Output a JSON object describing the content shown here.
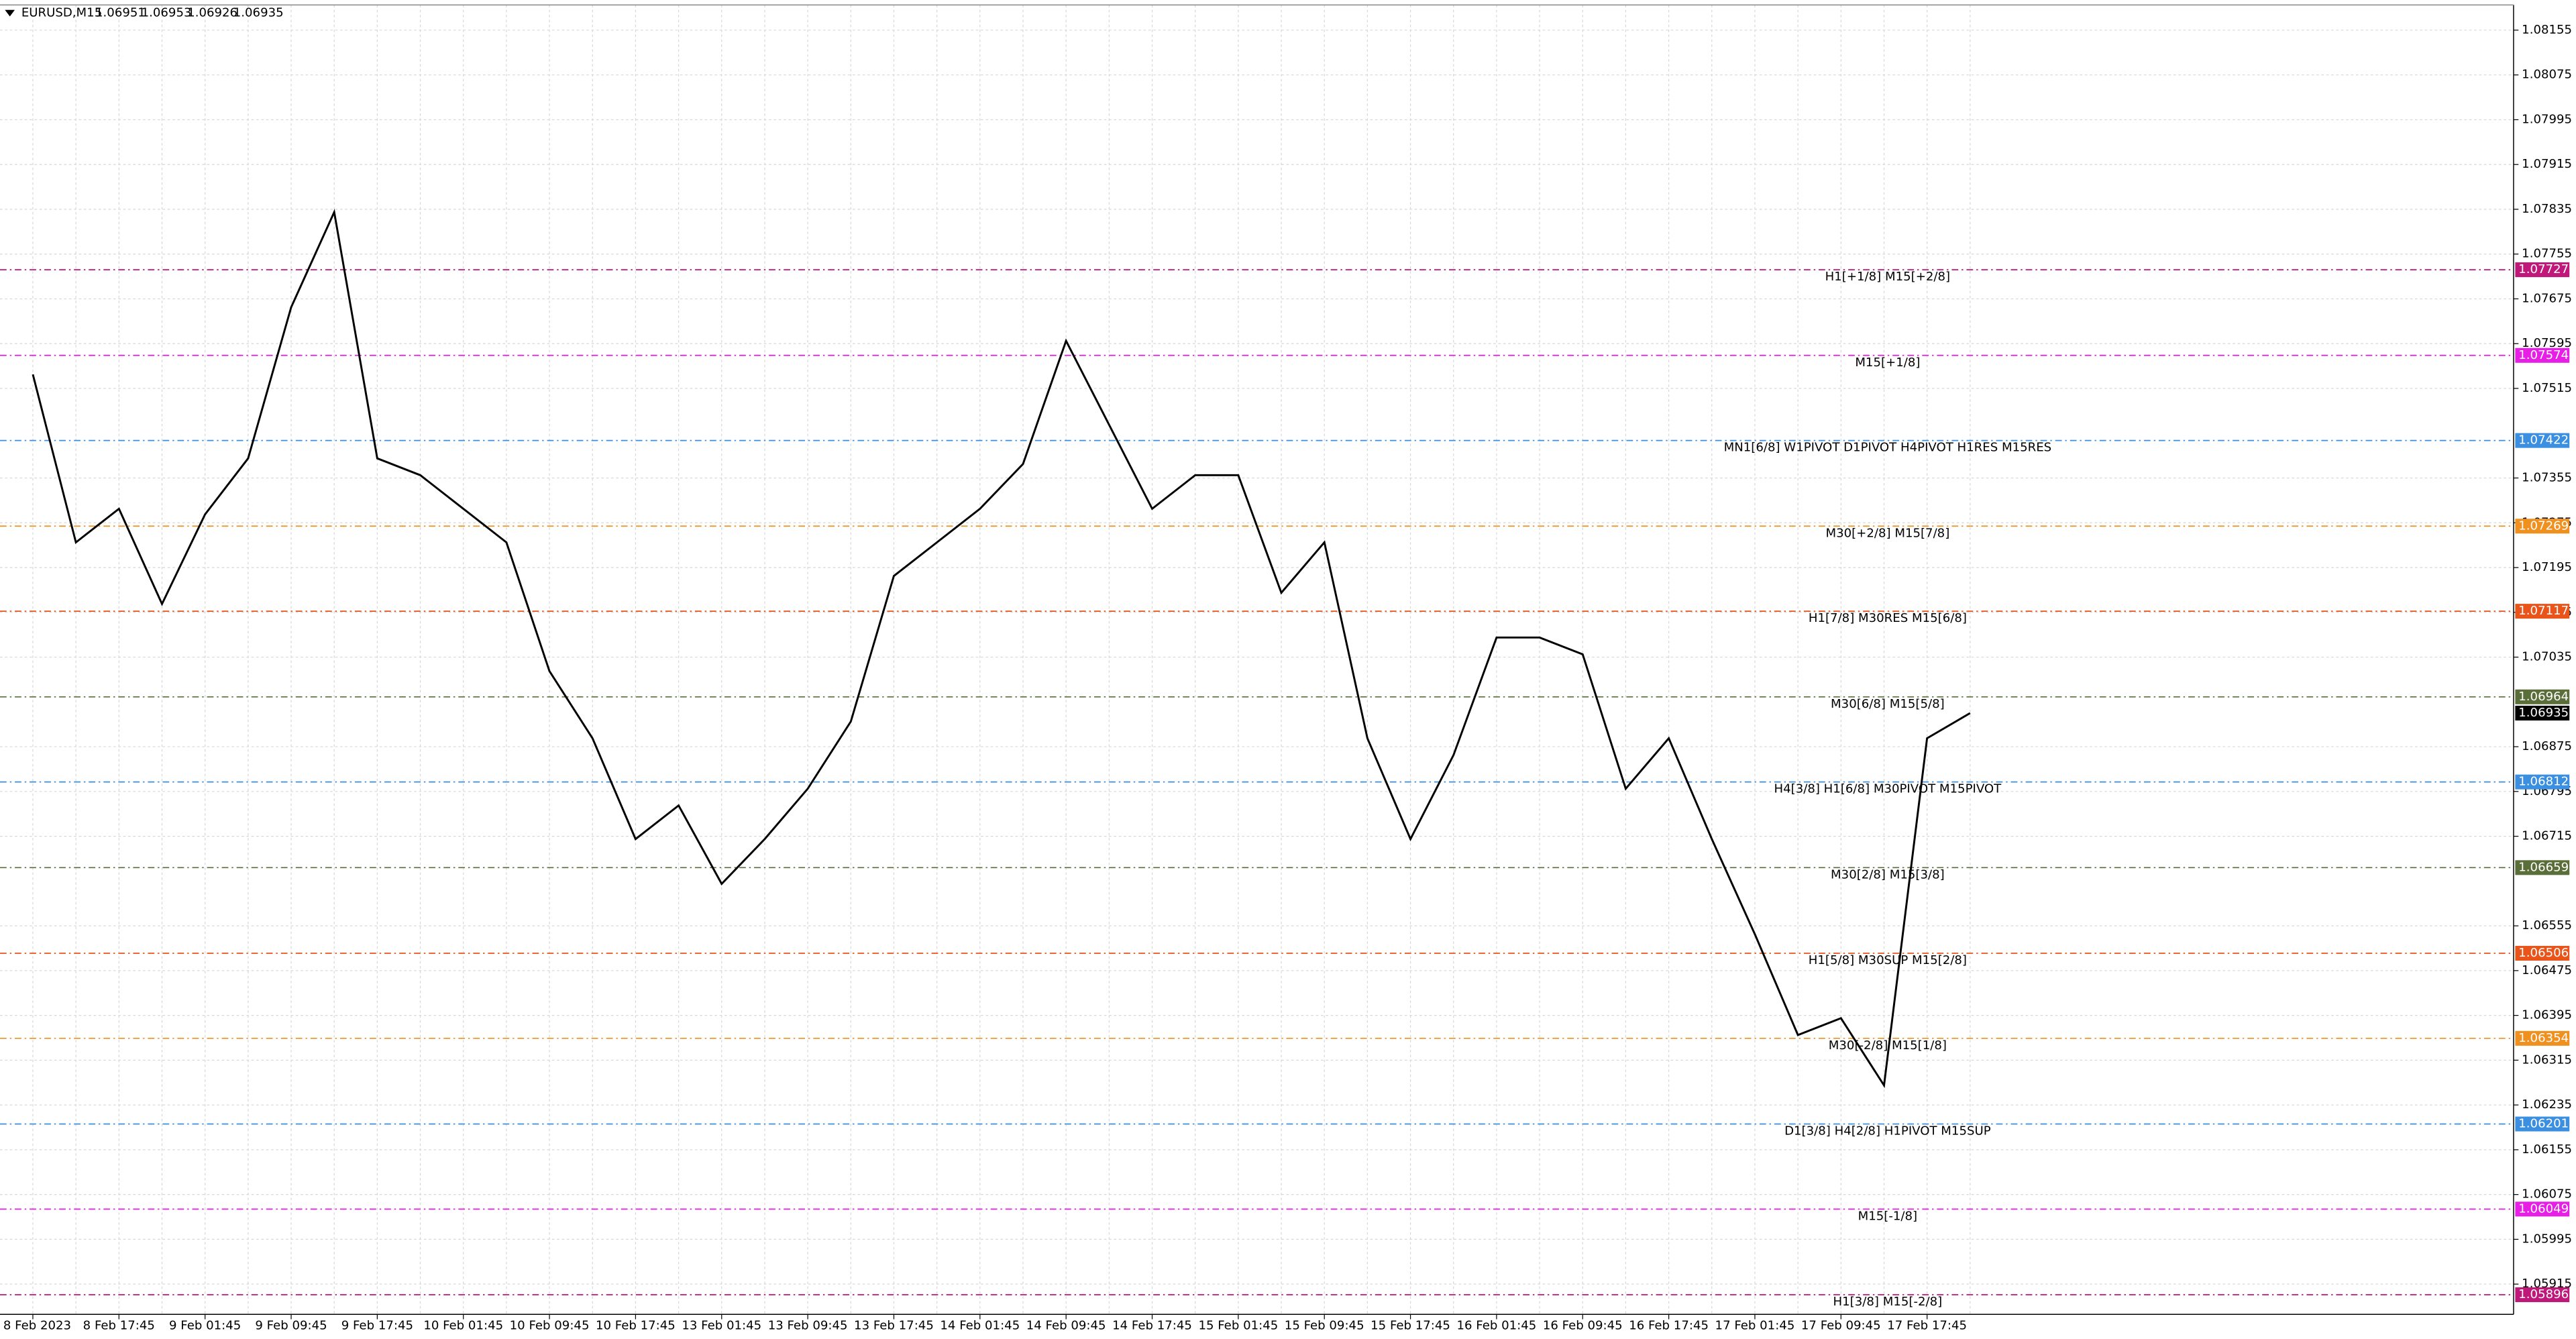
{
  "chart_data": {
    "type": "line",
    "title": "EURUSD,M15",
    "ohlc": [
      1.06951,
      1.06953,
      1.06926,
      1.06935
    ],
    "categories": [
      "8 Feb 2023",
      null,
      "8 Feb 17:45",
      null,
      "9 Feb 01:45",
      null,
      "9 Feb 09:45",
      null,
      "9 Feb 17:45",
      null,
      "10 Feb 01:45",
      null,
      "10 Feb 09:45",
      null,
      "10 Feb 17:45",
      null,
      "13 Feb 01:45",
      null,
      "13 Feb 09:45",
      null,
      "13 Feb 17:45",
      null,
      "14 Feb 01:45",
      null,
      "14 Feb 09:45",
      null,
      "14 Feb 17:45",
      null,
      "15 Feb 01:45",
      null,
      "15 Feb 09:45",
      null,
      "15 Feb 17:45",
      null,
      "16 Feb 01:45",
      null,
      "16 Feb 09:45",
      null,
      "16 Feb 17:45",
      null,
      "17 Feb 01:45",
      null,
      "17 Feb 09:45",
      null,
      "17 Feb 17:45",
      null
    ],
    "values": [
      1.0754,
      1.0724,
      1.073,
      1.0713,
      1.0729,
      1.0739,
      1.0766,
      1.0783,
      1.0739,
      1.0736,
      1.073,
      1.0724,
      1.0701,
      1.0689,
      1.0671,
      1.0677,
      1.0663,
      1.0671,
      1.068,
      1.0692,
      1.0718,
      1.0724,
      1.073,
      1.0738,
      1.076,
      1.0745,
      1.073,
      1.0736,
      1.0736,
      1.0715,
      1.0724,
      1.0689,
      1.0671,
      1.0686,
      1.0707,
      1.0707,
      1.0704,
      1.068,
      1.0689,
      1.0671,
      1.0654,
      1.0636,
      1.0639,
      1.0627,
      1.0689,
      1.06935
    ],
    "color": "#000000",
    "ylim": [
      1.05861,
      1.082
    ],
    "yticks": [
      1.08155,
      1.08075,
      1.07995,
      1.07915,
      1.07835,
      1.07755,
      1.07675,
      1.07595,
      1.07515,
      1.07355,
      1.07275,
      1.07195,
      1.07115,
      1.07035,
      1.06875,
      1.06795,
      1.06715,
      1.06555,
      1.06475,
      1.06395,
      1.06315,
      1.06235,
      1.06155,
      1.06075,
      1.05995,
      1.05915
    ],
    "grid": true,
    "levels": [
      {
        "value": 1.07727,
        "label": "H1[+1/8] M15[+2/8]",
        "color": "#c0177a"
      },
      {
        "value": 1.07574,
        "label": "M15[+1/8]",
        "color": "#e61ee6"
      },
      {
        "value": 1.07422,
        "label": "MN1[6/8] W1PIVOT D1PIVOT H4PIVOT H1RES M15RES",
        "color": "#3b8fe0"
      },
      {
        "value": 1.07269,
        "label": "M30[+2/8] M15[7/8]",
        "color": "#f0901e"
      },
      {
        "value": 1.07117,
        "label": "H1[7/8] M30RES M15[6/8]",
        "color": "#e8541a"
      },
      {
        "value": 1.06964,
        "label": "M30[6/8] M15[5/8]",
        "color": "#5a6e3a"
      },
      {
        "value": 1.06812,
        "label": "H4[3/8] H1[6/8] M30PIVOT M15PIVOT",
        "color": "#3b8fe0"
      },
      {
        "value": 1.06659,
        "label": "M30[2/8] M15[3/8]",
        "color": "#5a6e3a"
      },
      {
        "value": 1.06506,
        "label": "H1[5/8] M30SUP M15[2/8]",
        "color": "#e8541a"
      },
      {
        "value": 1.06354,
        "label": "M30[-2/8] M15[1/8]",
        "color": "#f0901e"
      },
      {
        "value": 1.06201,
        "label": "D1[3/8] H4[2/8] H1PIVOT M15SUP",
        "color": "#3b8fe0"
      },
      {
        "value": 1.06049,
        "label": "M15[-1/8]",
        "color": "#e61ee6"
      },
      {
        "value": 1.05896,
        "label": "H1[3/8] M15[-2/8]",
        "color": "#c0177a"
      }
    ]
  }
}
